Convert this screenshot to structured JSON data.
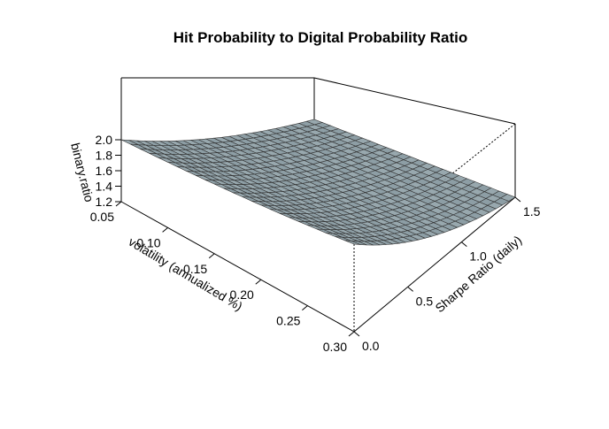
{
  "chart_data": {
    "type": "surface",
    "title": "Hit Probability to Digital Probability Ratio",
    "xlabel": "volatility (annualized %)",
    "ylabel": "Sharpe Ratio (daily)",
    "zlabel": "binary.ratio",
    "xlim": [
      0.05,
      0.3
    ],
    "ylim": [
      0.0,
      1.5
    ],
    "zlim": [
      1.2,
      2.0
    ],
    "x_ticks": [
      "0.05",
      "0.10",
      "0.15",
      "0.20",
      "0.25",
      "0.30"
    ],
    "y_ticks": [
      "0.0",
      "0.5",
      "1.0",
      "1.5"
    ],
    "z_ticks": [
      "1.2",
      "1.4",
      "1.6",
      "1.8",
      "2.0"
    ],
    "grid_size": [
      25,
      25
    ],
    "corner_values": {
      "x0.05_y0.0": 2.0,
      "x0.30_y0.0": 2.0,
      "x0.05_y1.5": 1.2,
      "x0.30_y1.5": 1.2
    },
    "surface_color": "#8d9ea5"
  }
}
